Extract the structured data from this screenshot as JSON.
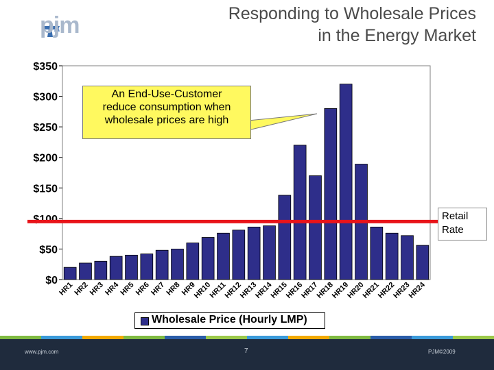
{
  "header": {
    "logo_text": "pjm",
    "title_line1": "Responding to Wholesale Prices",
    "title_line2": "in the Energy Market"
  },
  "callout": {
    "line1": "An End-Use-Customer",
    "line2": "reduce consumption when",
    "line3": "wholesale prices are high"
  },
  "retail_label": {
    "line1": "Retail",
    "line2": "Rate"
  },
  "footer": {
    "left": "www.pjm.com",
    "page": "7",
    "right": "PJM©2009"
  },
  "colors": {
    "bar": "#2e2e8a",
    "retail_line": "#e8141a",
    "callout": "#fff95f"
  },
  "chart_data": {
    "type": "bar",
    "categories": [
      "HR1",
      "HR2",
      "HR3",
      "HR4",
      "HR5",
      "HR6",
      "HR7",
      "HR8",
      "HR9",
      "HR10",
      "HR11",
      "HR12",
      "HR13",
      "HR14",
      "HR15",
      "HR16",
      "HR17",
      "HR18",
      "HR19",
      "HR20",
      "HR21",
      "HR22",
      "HR23",
      "HR24"
    ],
    "series": [
      {
        "name": "Wholesale Price (Hourly LMP)",
        "values": [
          20,
          27,
          30,
          38,
          40,
          42,
          48,
          50,
          60,
          69,
          76,
          81,
          86,
          88,
          138,
          220,
          170,
          280,
          320,
          189,
          86,
          76,
          72,
          56
        ]
      }
    ],
    "retail_rate": 95,
    "ylim": [
      0,
      350
    ],
    "yticks": [
      0,
      50,
      100,
      150,
      200,
      250,
      300,
      350
    ],
    "ytick_labels": [
      "$0",
      "$50",
      "$100",
      "$150",
      "$200",
      "$250",
      "$300",
      "$350"
    ],
    "grid": false,
    "legend": "bottom"
  }
}
